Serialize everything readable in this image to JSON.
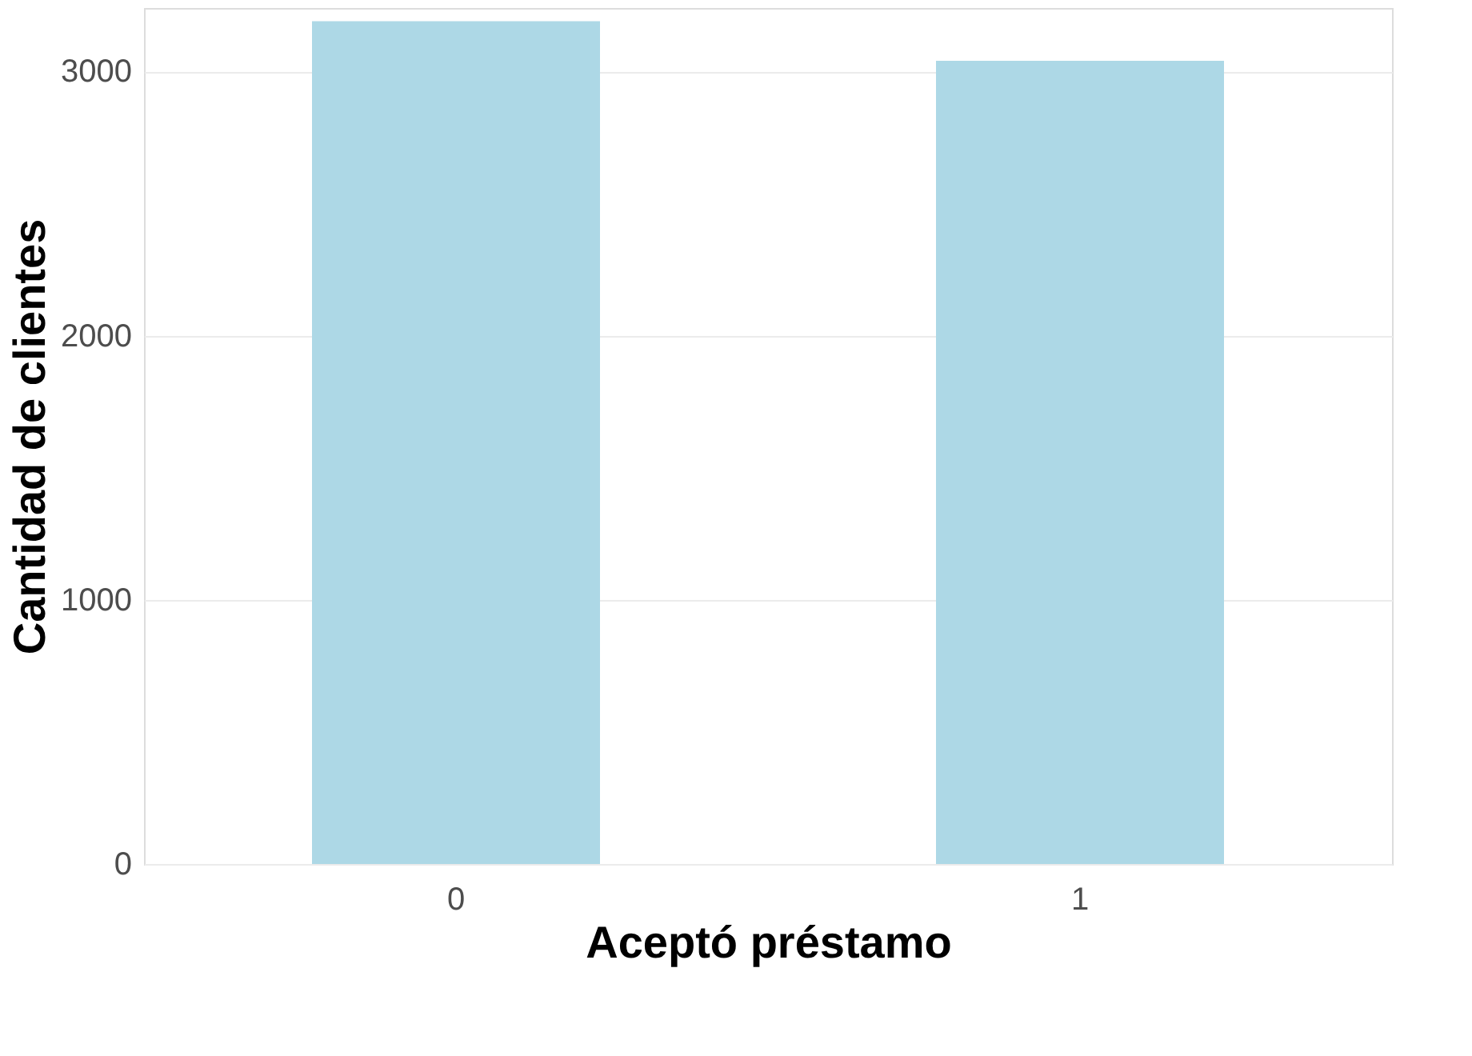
{
  "chart_data": {
    "type": "bar",
    "xlabel": "Aceptó préstamo",
    "ylabel": "Cantidad de clientes",
    "categories": [
      "0",
      "1"
    ],
    "series": [
      {
        "color": "#add8e6",
        "values": [
          3190,
          3040
        ]
      }
    ],
    "ylim": [
      0,
      3240
    ],
    "yticks": [
      0,
      1000,
      2000,
      3000
    ],
    "grid": "y"
  }
}
